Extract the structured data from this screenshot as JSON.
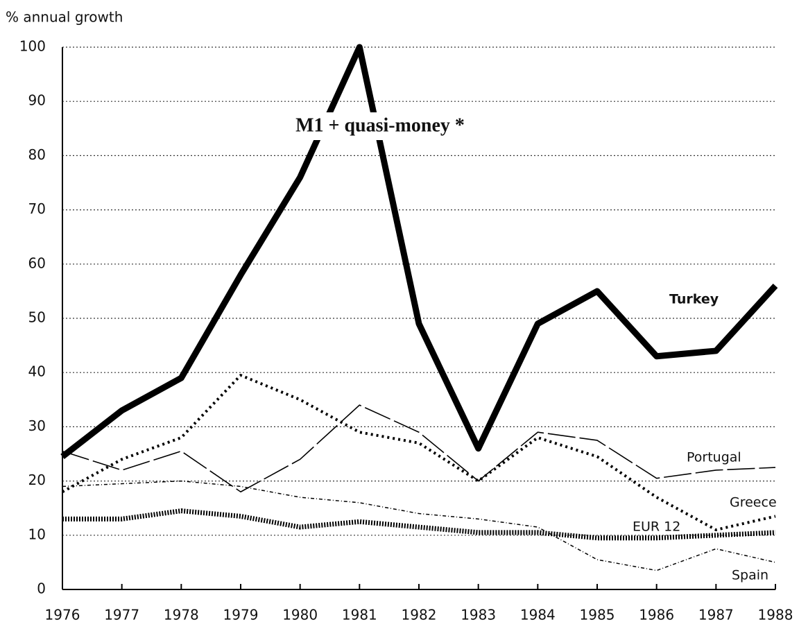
{
  "chart_data": {
    "type": "line",
    "title": "M1 + quasi-money *",
    "y_label": "% annual growth",
    "categories": [
      "1976",
      "1977",
      "1978",
      "1979",
      "1980",
      "1981",
      "1982",
      "1983",
      "1984",
      "1985",
      "1986",
      "1987",
      "1988"
    ],
    "ylim": [
      0,
      100
    ],
    "yticks": [
      0,
      10,
      20,
      30,
      40,
      50,
      60,
      70,
      80,
      90,
      100
    ],
    "grid": true,
    "series": [
      {
        "name": "Turkey",
        "color": "#000000",
        "width": 9,
        "dash": "none",
        "values": [
          24.5,
          33,
          39,
          58,
          76,
          100,
          49,
          26,
          49,
          55,
          43,
          44,
          56
        ]
      },
      {
        "name": "Portugal",
        "color": "#000000",
        "width": 1.6,
        "dash": "40 6",
        "values": [
          25.5,
          22,
          25.5,
          18,
          24,
          34,
          29,
          20,
          29,
          27.5,
          20.5,
          22,
          22.5
        ]
      },
      {
        "name": "Greece",
        "color": "#000000",
        "width": 4,
        "dash": "3 5",
        "values": [
          18,
          24,
          28,
          39.5,
          35,
          29,
          27,
          20,
          28,
          24.5,
          17,
          11,
          13.5
        ]
      },
      {
        "name": "EUR 12",
        "color": "#000000",
        "width": 7,
        "dash": "2 2",
        "values": [
          13,
          13,
          14.5,
          13.5,
          11.5,
          12.5,
          11.5,
          10.5,
          10.5,
          9.5,
          9.5,
          10,
          10.5
        ]
      },
      {
        "name": "Spain",
        "color": "#000000",
        "width": 1.5,
        "dash": "5 3 1 3",
        "values": [
          19,
          19.5,
          20,
          19,
          17,
          16,
          14,
          13,
          11.5,
          5.5,
          3.5,
          7.5,
          5
        ]
      }
    ]
  }
}
